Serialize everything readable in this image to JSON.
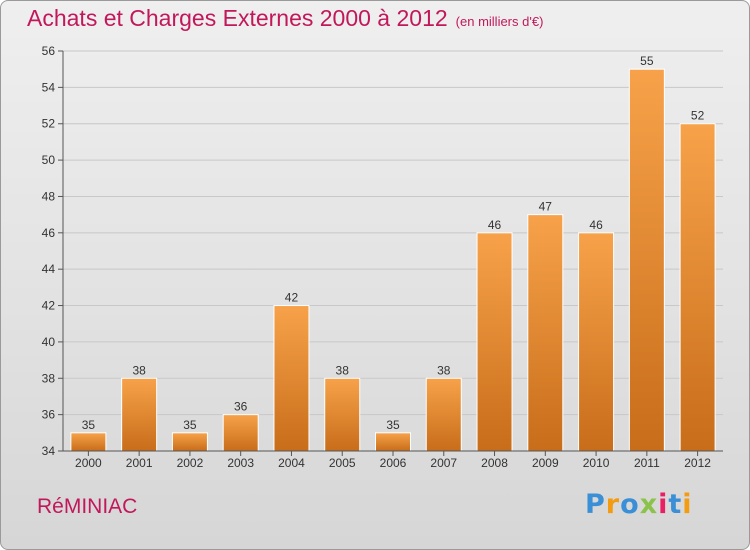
{
  "title": "Achats et Charges Externes 2000 à 2012",
  "subtitle": "(en milliers d'€)",
  "commune": "RéMINIAC",
  "logo": {
    "text": "Proxiti",
    "letter_colors": [
      "#3a8fd6",
      "#f39c12",
      "#3a8fd6",
      "#8bc34a",
      "#e91e63",
      "#3a8fd6",
      "#f39c12"
    ]
  },
  "colors": {
    "title": "#c2185b",
    "bar_light": "#f7a24a",
    "bar_dark": "#c86d1a",
    "grid": "#c8c8c8",
    "axis_text": "#333333"
  },
  "chart_data": {
    "type": "bar",
    "title": "Achats et Charges Externes 2000 à 2012",
    "subtitle": "(en milliers d'€)",
    "categories": [
      "2000",
      "2001",
      "2002",
      "2003",
      "2004",
      "2005",
      "2006",
      "2007",
      "2008",
      "2009",
      "2010",
      "2011",
      "2012"
    ],
    "values": [
      35,
      38,
      35,
      36,
      42,
      38,
      35,
      38,
      46,
      47,
      46,
      55,
      52
    ],
    "ylim": [
      34,
      56
    ],
    "yticks": [
      34,
      36,
      38,
      40,
      42,
      44,
      46,
      48,
      50,
      52,
      54,
      56
    ],
    "grid": true,
    "xlabel": "",
    "ylabel": ""
  }
}
